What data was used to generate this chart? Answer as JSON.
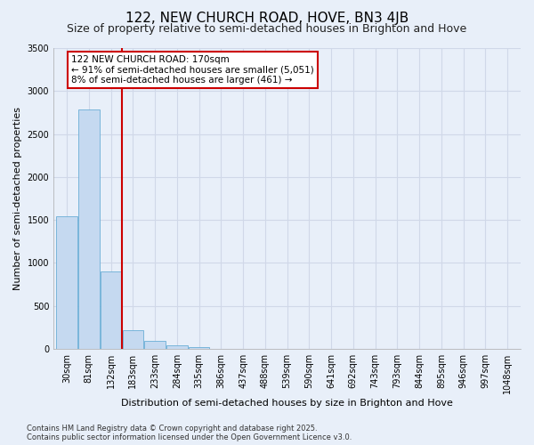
{
  "title": "122, NEW CHURCH ROAD, HOVE, BN3 4JB",
  "subtitle": "Size of property relative to semi-detached houses in Brighton and Hove",
  "xlabel": "Distribution of semi-detached houses by size in Brighton and Hove",
  "ylabel": "Number of semi-detached properties",
  "categories": [
    "30sqm",
    "81sqm",
    "132sqm",
    "183sqm",
    "233sqm",
    "284sqm",
    "335sqm",
    "386sqm",
    "437sqm",
    "488sqm",
    "539sqm",
    "590sqm",
    "641sqm",
    "692sqm",
    "743sqm",
    "793sqm",
    "844sqm",
    "895sqm",
    "946sqm",
    "997sqm",
    "1048sqm"
  ],
  "values": [
    1540,
    2780,
    900,
    215,
    95,
    40,
    20,
    0,
    0,
    0,
    0,
    0,
    0,
    0,
    0,
    0,
    0,
    0,
    0,
    0,
    0
  ],
  "bar_color": "#c5d9f0",
  "bar_edge_color": "#6aaed6",
  "vline_x": 2.5,
  "vline_color": "#cc0000",
  "annotation_text": "122 NEW CHURCH ROAD: 170sqm\n← 91% of semi-detached houses are smaller (5,051)\n8% of semi-detached houses are larger (461) →",
  "annotation_box_color": "#cc0000",
  "ylim": [
    0,
    3500
  ],
  "yticks": [
    0,
    500,
    1000,
    1500,
    2000,
    2500,
    3000,
    3500
  ],
  "footer": "Contains HM Land Registry data © Crown copyright and database right 2025.\nContains public sector information licensed under the Open Government Licence v3.0.",
  "bg_color": "#e8eff9",
  "grid_color": "#d0d8e8",
  "title_fontsize": 11,
  "subtitle_fontsize": 9,
  "label_fontsize": 8,
  "tick_fontsize": 7,
  "annotation_fontsize": 7.5
}
